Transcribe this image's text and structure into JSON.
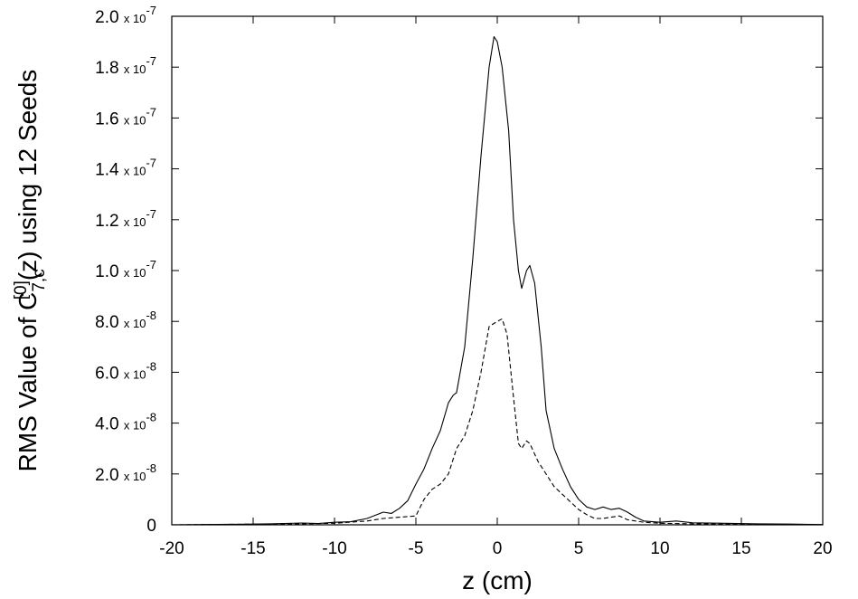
{
  "chart_data": {
    "type": "line",
    "title": "",
    "xlabel": "z (cm)",
    "ylabel": {
      "prefix": "RMS Value of C",
      "superscript": "[0]",
      "subscript": "7,c",
      "suffix": "(z) using 12 Seeds"
    },
    "xlim": [
      -20,
      20
    ],
    "ylim": [
      0,
      2e-07
    ],
    "grid": false,
    "legend": "none",
    "x_ticks": [
      -20,
      -15,
      -10,
      -5,
      0,
      5,
      10,
      15,
      20
    ],
    "x_tick_labels": [
      "-20",
      "-15",
      "-10",
      "-5",
      "0",
      "5",
      "10",
      "15",
      "20"
    ],
    "y_ticks": [
      0,
      2e-08,
      4e-08,
      6e-08,
      8e-08,
      1e-07,
      1.2e-07,
      1.4e-07,
      1.6e-07,
      1.8e-07,
      2e-07
    ],
    "y_tick_labels": [
      {
        "mantissa": "0",
        "base": "",
        "exponent": ""
      },
      {
        "mantissa": "2.0",
        "base": "x 10",
        "exponent": "-8"
      },
      {
        "mantissa": "4.0",
        "base": "x 10",
        "exponent": "-8"
      },
      {
        "mantissa": "6.0",
        "base": "x 10",
        "exponent": "-8"
      },
      {
        "mantissa": "8.0",
        "base": "x 10",
        "exponent": "-8"
      },
      {
        "mantissa": "1.0",
        "base": "x 10",
        "exponent": "-7"
      },
      {
        "mantissa": "1.2",
        "base": "x 10",
        "exponent": "-7"
      },
      {
        "mantissa": "1.4",
        "base": "x 10",
        "exponent": "-7"
      },
      {
        "mantissa": "1.6",
        "base": "x 10",
        "exponent": "-7"
      },
      {
        "mantissa": "1.8",
        "base": "x 10",
        "exponent": "-7"
      },
      {
        "mantissa": "2.0",
        "base": "x 10",
        "exponent": "-7"
      }
    ],
    "series": [
      {
        "style": "solid",
        "color": "#000000",
        "points": [
          [
            -20,
            0.0
          ],
          [
            -18,
            1e-10
          ],
          [
            -16,
            2e-10
          ],
          [
            -14,
            4e-10
          ],
          [
            -12,
            7e-10
          ],
          [
            -11,
            5e-10
          ],
          [
            -10,
            1e-09
          ],
          [
            -9,
            1.2e-09
          ],
          [
            -8,
            2.5e-09
          ],
          [
            -7,
            5e-09
          ],
          [
            -6.5,
            4.5e-09
          ],
          [
            -6,
            6.5e-09
          ],
          [
            -5.5,
            9.5e-09
          ],
          [
            -5,
            1.6e-08
          ],
          [
            -4.5,
            2.2e-08
          ],
          [
            -4,
            3e-08
          ],
          [
            -3.5,
            3.7e-08
          ],
          [
            -3,
            4.8e-08
          ],
          [
            -2.7,
            5.1e-08
          ],
          [
            -2.5,
            5.2e-08
          ],
          [
            -2,
            7e-08
          ],
          [
            -1.5,
            1.05e-07
          ],
          [
            -1,
            1.45e-07
          ],
          [
            -0.5,
            1.8e-07
          ],
          [
            -0.2,
            1.92e-07
          ],
          [
            0,
            1.9e-07
          ],
          [
            0.3,
            1.8e-07
          ],
          [
            0.7,
            1.55e-07
          ],
          [
            1,
            1.2e-07
          ],
          [
            1.3,
            1e-07
          ],
          [
            1.5,
            9.3e-08
          ],
          [
            1.8,
            1e-07
          ],
          [
            2,
            1.02e-07
          ],
          [
            2.3,
            9.5e-08
          ],
          [
            2.7,
            7e-08
          ],
          [
            3,
            4.5e-08
          ],
          [
            3.5,
            3e-08
          ],
          [
            4,
            2.2e-08
          ],
          [
            4.5,
            1.5e-08
          ],
          [
            5,
            1e-08
          ],
          [
            5.5,
            7e-09
          ],
          [
            6,
            6e-09
          ],
          [
            6.5,
            7e-09
          ],
          [
            7,
            6e-09
          ],
          [
            7.5,
            6.5e-09
          ],
          [
            8,
            5e-09
          ],
          [
            8.5,
            3e-09
          ],
          [
            9,
            1.5e-09
          ],
          [
            10,
            1e-09
          ],
          [
            11,
            1.5e-09
          ],
          [
            12,
            8e-10
          ],
          [
            14,
            6e-10
          ],
          [
            16,
            4e-10
          ],
          [
            18,
            3e-10
          ],
          [
            20,
            1e-10
          ]
        ]
      },
      {
        "style": "dashed",
        "color": "#000000",
        "points": [
          [
            -20,
            0.0
          ],
          [
            -18,
            1e-10
          ],
          [
            -16,
            2e-10
          ],
          [
            -14,
            3e-10
          ],
          [
            -12,
            4e-10
          ],
          [
            -10,
            6e-10
          ],
          [
            -8,
            1.5e-09
          ],
          [
            -7,
            2.5e-09
          ],
          [
            -6,
            3e-09
          ],
          [
            -5,
            3.5e-09
          ],
          [
            -4.5,
            1e-08
          ],
          [
            -4,
            1.4e-08
          ],
          [
            -3.5,
            1.6e-08
          ],
          [
            -3,
            2e-08
          ],
          [
            -2.5,
            3e-08
          ],
          [
            -2,
            3.5e-08
          ],
          [
            -1.5,
            4.5e-08
          ],
          [
            -1,
            6e-08
          ],
          [
            -0.5,
            7.8e-08
          ],
          [
            0,
            8e-08
          ],
          [
            0.3,
            8.1e-08
          ],
          [
            0.6,
            7.5e-08
          ],
          [
            1,
            5e-08
          ],
          [
            1.3,
            3.2e-08
          ],
          [
            1.5,
            3e-08
          ],
          [
            1.8,
            3.3e-08
          ],
          [
            2,
            3.2e-08
          ],
          [
            2.5,
            2.5e-08
          ],
          [
            3,
            2e-08
          ],
          [
            3.5,
            1.5e-08
          ],
          [
            4,
            1.2e-08
          ],
          [
            4.5,
            9e-09
          ],
          [
            5,
            6e-09
          ],
          [
            5.5,
            4e-09
          ],
          [
            6,
            2.5e-09
          ],
          [
            6.5,
            2.5e-09
          ],
          [
            7,
            3e-09
          ],
          [
            7.5,
            3.5e-09
          ],
          [
            8,
            2e-09
          ],
          [
            9,
            1e-09
          ],
          [
            10,
            6e-10
          ],
          [
            12,
            4e-10
          ],
          [
            14,
            3e-10
          ],
          [
            16,
            2e-10
          ],
          [
            18,
            1e-10
          ],
          [
            20,
            0.0
          ]
        ]
      }
    ]
  }
}
